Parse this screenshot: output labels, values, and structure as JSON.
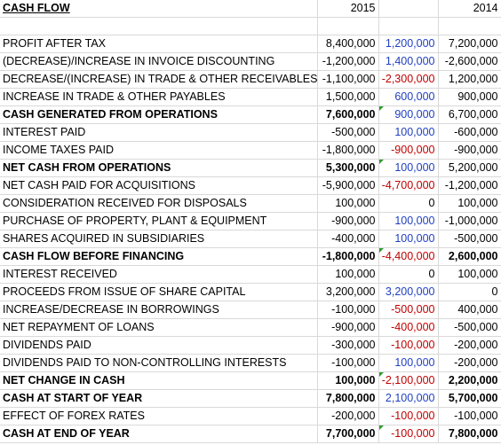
{
  "header": {
    "title": "CASH FLOW",
    "year_a": "2015",
    "year_b": "2014"
  },
  "colors": {
    "positive_change": "#1f3fbf",
    "negative_change": "#c00000",
    "comment_marker": "#2e9a2e",
    "gridline": "#d9d9d9"
  },
  "rows": [
    {
      "label": "PROFIT AFTER TAX",
      "v2015": "8,400,000",
      "delta": "1,200,000",
      "v2014": "7,200,000"
    },
    {
      "label": "(DECREASE)/INCREASE IN INVOICE DISCOUNTING",
      "v2015": "-1,200,000",
      "delta": "1,400,000",
      "v2014": "-2,600,000"
    },
    {
      "label": "DECREASE/(INCREASE) IN TRADE & OTHER RECEIVABLES",
      "v2015": "-1,100,000",
      "delta": "-2,300,000",
      "v2014": "1,200,000"
    },
    {
      "label": "INCREASE IN TRADE & OTHER PAYABLES",
      "v2015": "1,500,000",
      "delta": "600,000",
      "v2014": "900,000"
    },
    {
      "label": "CASH GENERATED FROM OPERATIONS",
      "v2015": "7,600,000",
      "delta": "900,000",
      "v2014": "6,700,000"
    },
    {
      "label": "INTEREST PAID",
      "v2015": "-500,000",
      "delta": "100,000",
      "v2014": "-600,000"
    },
    {
      "label": "INCOME TAXES PAID",
      "v2015": "-1,800,000",
      "delta": "-900,000",
      "v2014": "-900,000"
    },
    {
      "label": "NET CASH FROM OPERATIONS",
      "v2015": "5,300,000",
      "delta": "100,000",
      "v2014": "5,200,000"
    },
    {
      "label": "NET CASH PAID FOR ACQUISITIONS",
      "v2015": "-5,900,000",
      "delta": "-4,700,000",
      "v2014": "-1,200,000"
    },
    {
      "label": "CONSIDERATION RECEIVED FOR DISPOSALS",
      "v2015": "100,000",
      "delta": "0",
      "v2014": "100,000"
    },
    {
      "label": "PURCHASE OF PROPERTY, PLANT & EQUIPMENT",
      "v2015": "-900,000",
      "delta": "100,000",
      "v2014": "-1,000,000"
    },
    {
      "label": "SHARES ACQUIRED IN SUBSIDIARIES",
      "v2015": "-400,000",
      "delta": "100,000",
      "v2014": "-500,000"
    },
    {
      "label": "CASH FLOW BEFORE FINANCING",
      "v2015": "-1,800,000",
      "delta": "-4,400,000",
      "v2014": "2,600,000"
    },
    {
      "label": "INTEREST RECEIVED",
      "v2015": "100,000",
      "delta": "0",
      "v2014": "100,000"
    },
    {
      "label": "PROCEEDS FROM ISSUE OF SHARE CAPITAL",
      "v2015": "3,200,000",
      "delta": "3,200,000",
      "v2014": "0"
    },
    {
      "label": "INCREASE/DECREASE IN BORROWINGS",
      "v2015": "-100,000",
      "delta": "-500,000",
      "v2014": "400,000"
    },
    {
      "label": "NET REPAYMENT OF LOANS",
      "v2015": "-900,000",
      "delta": "-400,000",
      "v2014": "-500,000"
    },
    {
      "label": "DIVIDENDS PAID",
      "v2015": "-300,000",
      "delta": "-100,000",
      "v2014": "-200,000"
    },
    {
      "label": "DIVIDENDS PAID TO NON-CONTROLLING INTERESTS",
      "v2015": "-100,000",
      "delta": "100,000",
      "v2014": "-200,000"
    },
    {
      "label": "NET CHANGE IN CASH",
      "v2015": "100,000",
      "delta": "-2,100,000",
      "v2014": "2,200,000"
    },
    {
      "label": "CASH AT START OF YEAR",
      "v2015": "7,800,000",
      "delta": "2,100,000",
      "v2014": "5,700,000"
    },
    {
      "label": "EFFECT OF FOREX RATES",
      "v2015": "-200,000",
      "delta": "-100,000",
      "v2014": "-100,000"
    },
    {
      "label": "CASH AT END OF YEAR",
      "v2015": "7,700,000",
      "delta": "-100,000",
      "v2014": "7,800,000"
    }
  ]
}
